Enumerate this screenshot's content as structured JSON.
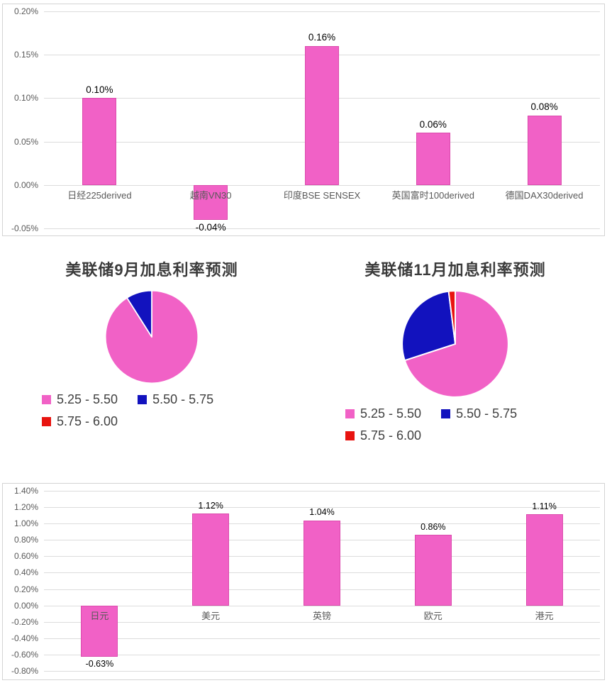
{
  "chart_data": [
    {
      "id": "global-index-change-bar",
      "type": "bar",
      "title": "",
      "categories": [
        "日经225derived",
        "越南VN30",
        "印度BSE SENSEX",
        "英国富时100derived",
        "德国DAX30derived"
      ],
      "values": [
        0.1,
        -0.04,
        0.16,
        0.06,
        0.08
      ],
      "data_labels": [
        "0.10%",
        "-0.04%",
        "0.16%",
        "0.06%",
        "0.08%"
      ],
      "ylim": [
        -0.05,
        0.2
      ],
      "ytick_step": 0.05,
      "ytick_labels": [
        "0.20%",
        "0.15%",
        "0.10%",
        "0.05%",
        "0.00%",
        "-0.05%"
      ],
      "bar_color": "#F161C6",
      "bar_border_color": "#DB4BAD",
      "grid": true,
      "legend": "none"
    },
    {
      "id": "fed-september-rate-pie",
      "type": "pie",
      "title": "美联储9月加息利率预测",
      "slices": [
        {
          "label": "5.25 - 5.50",
          "value": 91,
          "color": "#F161C6"
        },
        {
          "label": "5.50 - 5.75",
          "value": 9,
          "color": "#1212BE"
        },
        {
          "label": "5.75 - 6.00",
          "value": 0,
          "color": "#E81410"
        }
      ],
      "legend_position": "bottom"
    },
    {
      "id": "fed-november-rate-pie",
      "type": "pie",
      "title": "美联储11月加息利率预测",
      "slices": [
        {
          "label": "5.25 - 5.50",
          "value": 70,
          "color": "#F161C6"
        },
        {
          "label": "5.50 - 5.75",
          "value": 28,
          "color": "#1212BE"
        },
        {
          "label": "5.75 - 6.00",
          "value": 2,
          "color": "#E81410"
        }
      ],
      "legend_position": "bottom"
    },
    {
      "id": "currency-change-bar",
      "type": "bar",
      "title": "",
      "categories": [
        "日元",
        "美元",
        "英镑",
        "欧元",
        "港元"
      ],
      "values": [
        -0.63,
        1.12,
        1.04,
        0.86,
        1.11
      ],
      "data_labels": [
        "-0.63%",
        "1.12%",
        "1.04%",
        "0.86%",
        "1.11%"
      ],
      "ylim": [
        -0.8,
        1.4
      ],
      "ytick_step": 0.2,
      "ytick_labels": [
        "1.40%",
        "1.20%",
        "1.00%",
        "0.80%",
        "0.60%",
        "0.40%",
        "0.20%",
        "0.00%",
        "-0.20%",
        "-0.40%",
        "-0.60%",
        "-0.80%"
      ],
      "bar_color": "#F161C6",
      "bar_border_color": "#DB4BAD",
      "grid": true,
      "legend": "none"
    }
  ]
}
